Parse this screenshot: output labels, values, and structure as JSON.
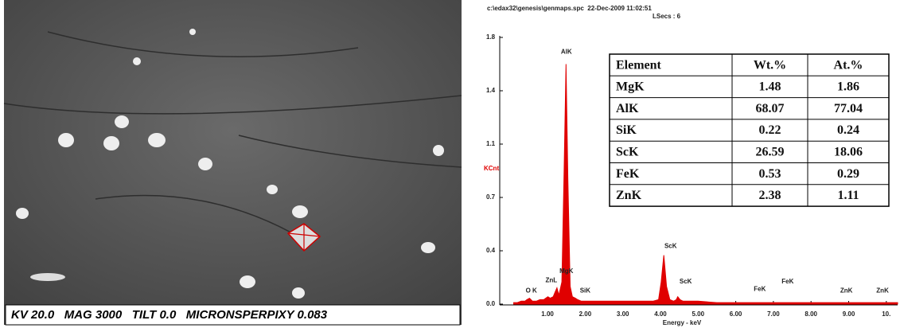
{
  "sem_image": {
    "caption": "KV 20.0   MAG 3000   TILT 0.0   MICRONSPERPIXY 0.083"
  },
  "chart_data": {
    "type": "area",
    "header": "c:\\edax32\\genesis\\genmaps.spc  22-Dec-2009 11:02:51",
    "subheader": "LSecs : 6",
    "y_label": "KCnt",
    "x_label": "Energy - keV",
    "color": "#e00000",
    "x": [
      0.1,
      0.2,
      0.3,
      0.4,
      0.45,
      0.52,
      0.6,
      0.7,
      0.8,
      0.9,
      0.95,
      1.01,
      1.07,
      1.15,
      1.2,
      1.25,
      1.3,
      1.38,
      1.44,
      1.49,
      1.54,
      1.6,
      1.66,
      1.74,
      1.8,
      1.9,
      2.0,
      2.3,
      2.6,
      3.0,
      3.4,
      3.8,
      3.95,
      4.02,
      4.09,
      4.16,
      4.25,
      4.35,
      4.42,
      4.46,
      4.52,
      4.6,
      5.0,
      5.5,
      6.0,
      6.4,
      7.0,
      7.6,
      8.0,
      8.6,
      9.0,
      9.6,
      10.0,
      10.3
    ],
    "values": [
      0.01,
      0.01,
      0.02,
      0.02,
      0.03,
      0.04,
      0.02,
      0.02,
      0.03,
      0.03,
      0.04,
      0.05,
      0.04,
      0.05,
      0.08,
      0.11,
      0.06,
      0.15,
      0.9,
      1.62,
      0.85,
      0.12,
      0.05,
      0.04,
      0.03,
      0.02,
      0.02,
      0.02,
      0.02,
      0.02,
      0.02,
      0.02,
      0.03,
      0.15,
      0.33,
      0.12,
      0.03,
      0.02,
      0.03,
      0.05,
      0.03,
      0.02,
      0.02,
      0.01,
      0.01,
      0.01,
      0.01,
      0.01,
      0.01,
      0.01,
      0.01,
      0.01,
      0.01,
      0.01
    ],
    "xlim": [
      -0.27,
      10.3
    ],
    "ylim": [
      0,
      1.8
    ],
    "xticks": [
      {
        "value": 1,
        "label": "1.00"
      },
      {
        "value": 2,
        "label": "2.00"
      },
      {
        "value": 3,
        "label": "3.00"
      },
      {
        "value": 4,
        "label": "4.00"
      },
      {
        "value": 5,
        "label": "5.00"
      },
      {
        "value": 6,
        "label": "6.00"
      },
      {
        "value": 7,
        "label": "7.00"
      },
      {
        "value": 8,
        "label": "8.00"
      },
      {
        "value": 9,
        "label": "9.00"
      },
      {
        "value": 10,
        "label": "10."
      }
    ],
    "yticks": [
      {
        "value": 0,
        "label": "0.0"
      },
      {
        "value": 0.36,
        "label": "0.4"
      },
      {
        "value": 0.72,
        "label": "0.7"
      },
      {
        "value": 1.08,
        "label": "1.1"
      },
      {
        "value": 1.44,
        "label": "1.4"
      },
      1.8
    ],
    "peak_labels": [
      {
        "text": "AlK",
        "x": 1.5,
        "y": 1.7
      },
      {
        "text": "O K",
        "x": 0.57,
        "y": 0.09
      },
      {
        "text": "ZnL",
        "x": 1.1,
        "y": 0.16
      },
      {
        "text": "MgK",
        "x": 1.5,
        "y": 0.22
      },
      {
        "text": "SiK",
        "x": 2.0,
        "y": 0.09
      },
      {
        "text": "ScK",
        "x": 4.27,
        "y": 0.39
      },
      {
        "text": "ScK",
        "x": 4.67,
        "y": 0.15
      },
      {
        "text": "FeK",
        "x": 6.64,
        "y": 0.1
      },
      {
        "text": "FeK",
        "x": 7.38,
        "y": 0.15
      },
      {
        "text": "ZnK",
        "x": 8.94,
        "y": 0.09
      },
      {
        "text": "ZnK",
        "x": 9.9,
        "y": 0.09
      }
    ]
  },
  "table": {
    "header": [
      "Element",
      "Wt.%",
      "At.%"
    ],
    "rows": [
      [
        "MgK",
        "1.48",
        "1.86"
      ],
      [
        "AlK",
        "68.07",
        "77.04"
      ],
      [
        "SiK",
        "0.22",
        "0.24"
      ],
      [
        "ScK",
        "26.59",
        "18.06"
      ],
      [
        "FeK",
        "0.53",
        "0.29"
      ],
      [
        "ZnK",
        "2.38",
        "1.11"
      ]
    ]
  }
}
